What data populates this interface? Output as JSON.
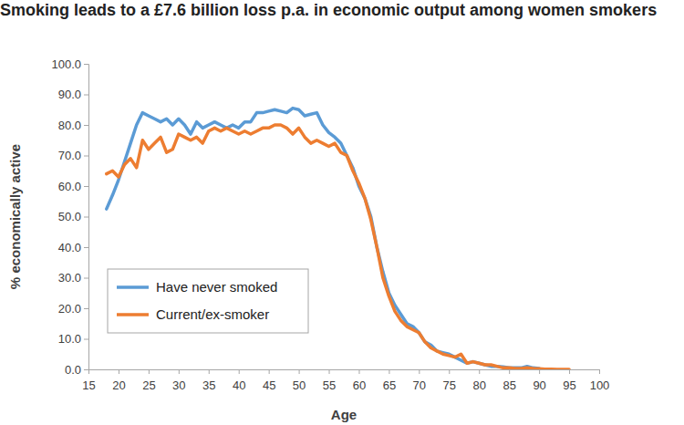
{
  "chart_data": {
    "type": "line",
    "title": "Smoking leads to a £7.6 billion loss p.a. in economic output among women smokers",
    "x_label": "Age",
    "y_label": "% economically active",
    "x": [
      18,
      19,
      20,
      21,
      22,
      23,
      24,
      25,
      26,
      27,
      28,
      29,
      30,
      31,
      32,
      33,
      34,
      35,
      36,
      37,
      38,
      39,
      40,
      41,
      42,
      43,
      44,
      45,
      46,
      47,
      48,
      49,
      50,
      51,
      52,
      53,
      54,
      55,
      56,
      57,
      58,
      59,
      60,
      61,
      62,
      63,
      64,
      65,
      66,
      67,
      68,
      69,
      70,
      71,
      72,
      73,
      74,
      75,
      76,
      77,
      78,
      79,
      80,
      81,
      82,
      83,
      84,
      85,
      86,
      87,
      88,
      89,
      90,
      91,
      92,
      93,
      94,
      95
    ],
    "series": [
      {
        "name": "Have never smoked",
        "color": "#5b9bd5",
        "values": [
          52.5,
          57,
          62,
          68,
          74,
          80,
          84,
          83,
          82,
          81,
          82,
          80,
          82,
          80,
          77,
          81,
          79,
          80,
          81,
          80,
          79,
          80,
          79,
          81,
          81,
          84,
          84,
          84.5,
          85,
          84.5,
          84,
          85.5,
          85,
          83,
          83.5,
          84,
          80,
          77.5,
          76,
          74,
          70,
          66,
          60,
          56,
          50,
          40,
          32,
          25,
          21,
          18,
          15,
          14,
          12,
          9,
          8,
          6,
          5.5,
          5,
          4,
          3,
          2,
          2.5,
          2,
          1.5,
          1,
          1,
          0.8,
          0.5,
          0.5,
          0.5,
          1,
          0.5,
          0.3,
          null,
          null,
          null,
          null,
          null
        ]
      },
      {
        "name": "Current/ex-smoker",
        "color": "#ed7d31",
        "values": [
          64,
          65,
          63,
          67,
          69,
          66,
          75,
          72,
          74,
          76,
          71,
          72,
          77,
          76,
          75,
          76,
          74,
          78,
          79,
          78,
          79,
          78,
          77,
          78,
          77,
          78,
          79,
          79,
          80,
          80,
          79,
          77,
          79,
          76,
          74,
          75,
          74,
          73,
          74,
          71,
          70,
          65,
          61,
          56,
          49,
          40,
          30,
          24,
          19,
          16,
          14,
          13,
          12,
          9,
          7,
          6,
          5,
          4.5,
          4,
          5,
          2,
          2.5,
          2,
          1.5,
          1.5,
          1,
          0.5,
          0.5,
          0.3,
          0.3,
          0.5,
          0.3,
          0.2,
          0.1,
          0.1,
          0,
          0,
          0
        ]
      }
    ],
    "xlim": [
      15,
      100
    ],
    "ylim": [
      0,
      100
    ],
    "xticks": [
      15,
      20,
      25,
      30,
      35,
      40,
      45,
      50,
      55,
      60,
      65,
      70,
      75,
      80,
      85,
      90,
      95,
      100
    ],
    "yticks": [
      {
        "value": 0,
        "label": "0.0"
      },
      {
        "value": 10,
        "label": "10.0"
      },
      {
        "value": 20,
        "label": "20.0"
      },
      {
        "value": 30,
        "label": "30.0"
      },
      {
        "value": 40,
        "label": "40.0"
      },
      {
        "value": 50,
        "label": "50.0"
      },
      {
        "value": 60,
        "label": "60.0"
      },
      {
        "value": 70,
        "label": "70.0"
      },
      {
        "value": 80,
        "label": "80.0"
      },
      {
        "value": 90,
        "label": "90.0"
      },
      {
        "value": 100,
        "label": "100.0"
      }
    ],
    "legend": "lower left"
  }
}
